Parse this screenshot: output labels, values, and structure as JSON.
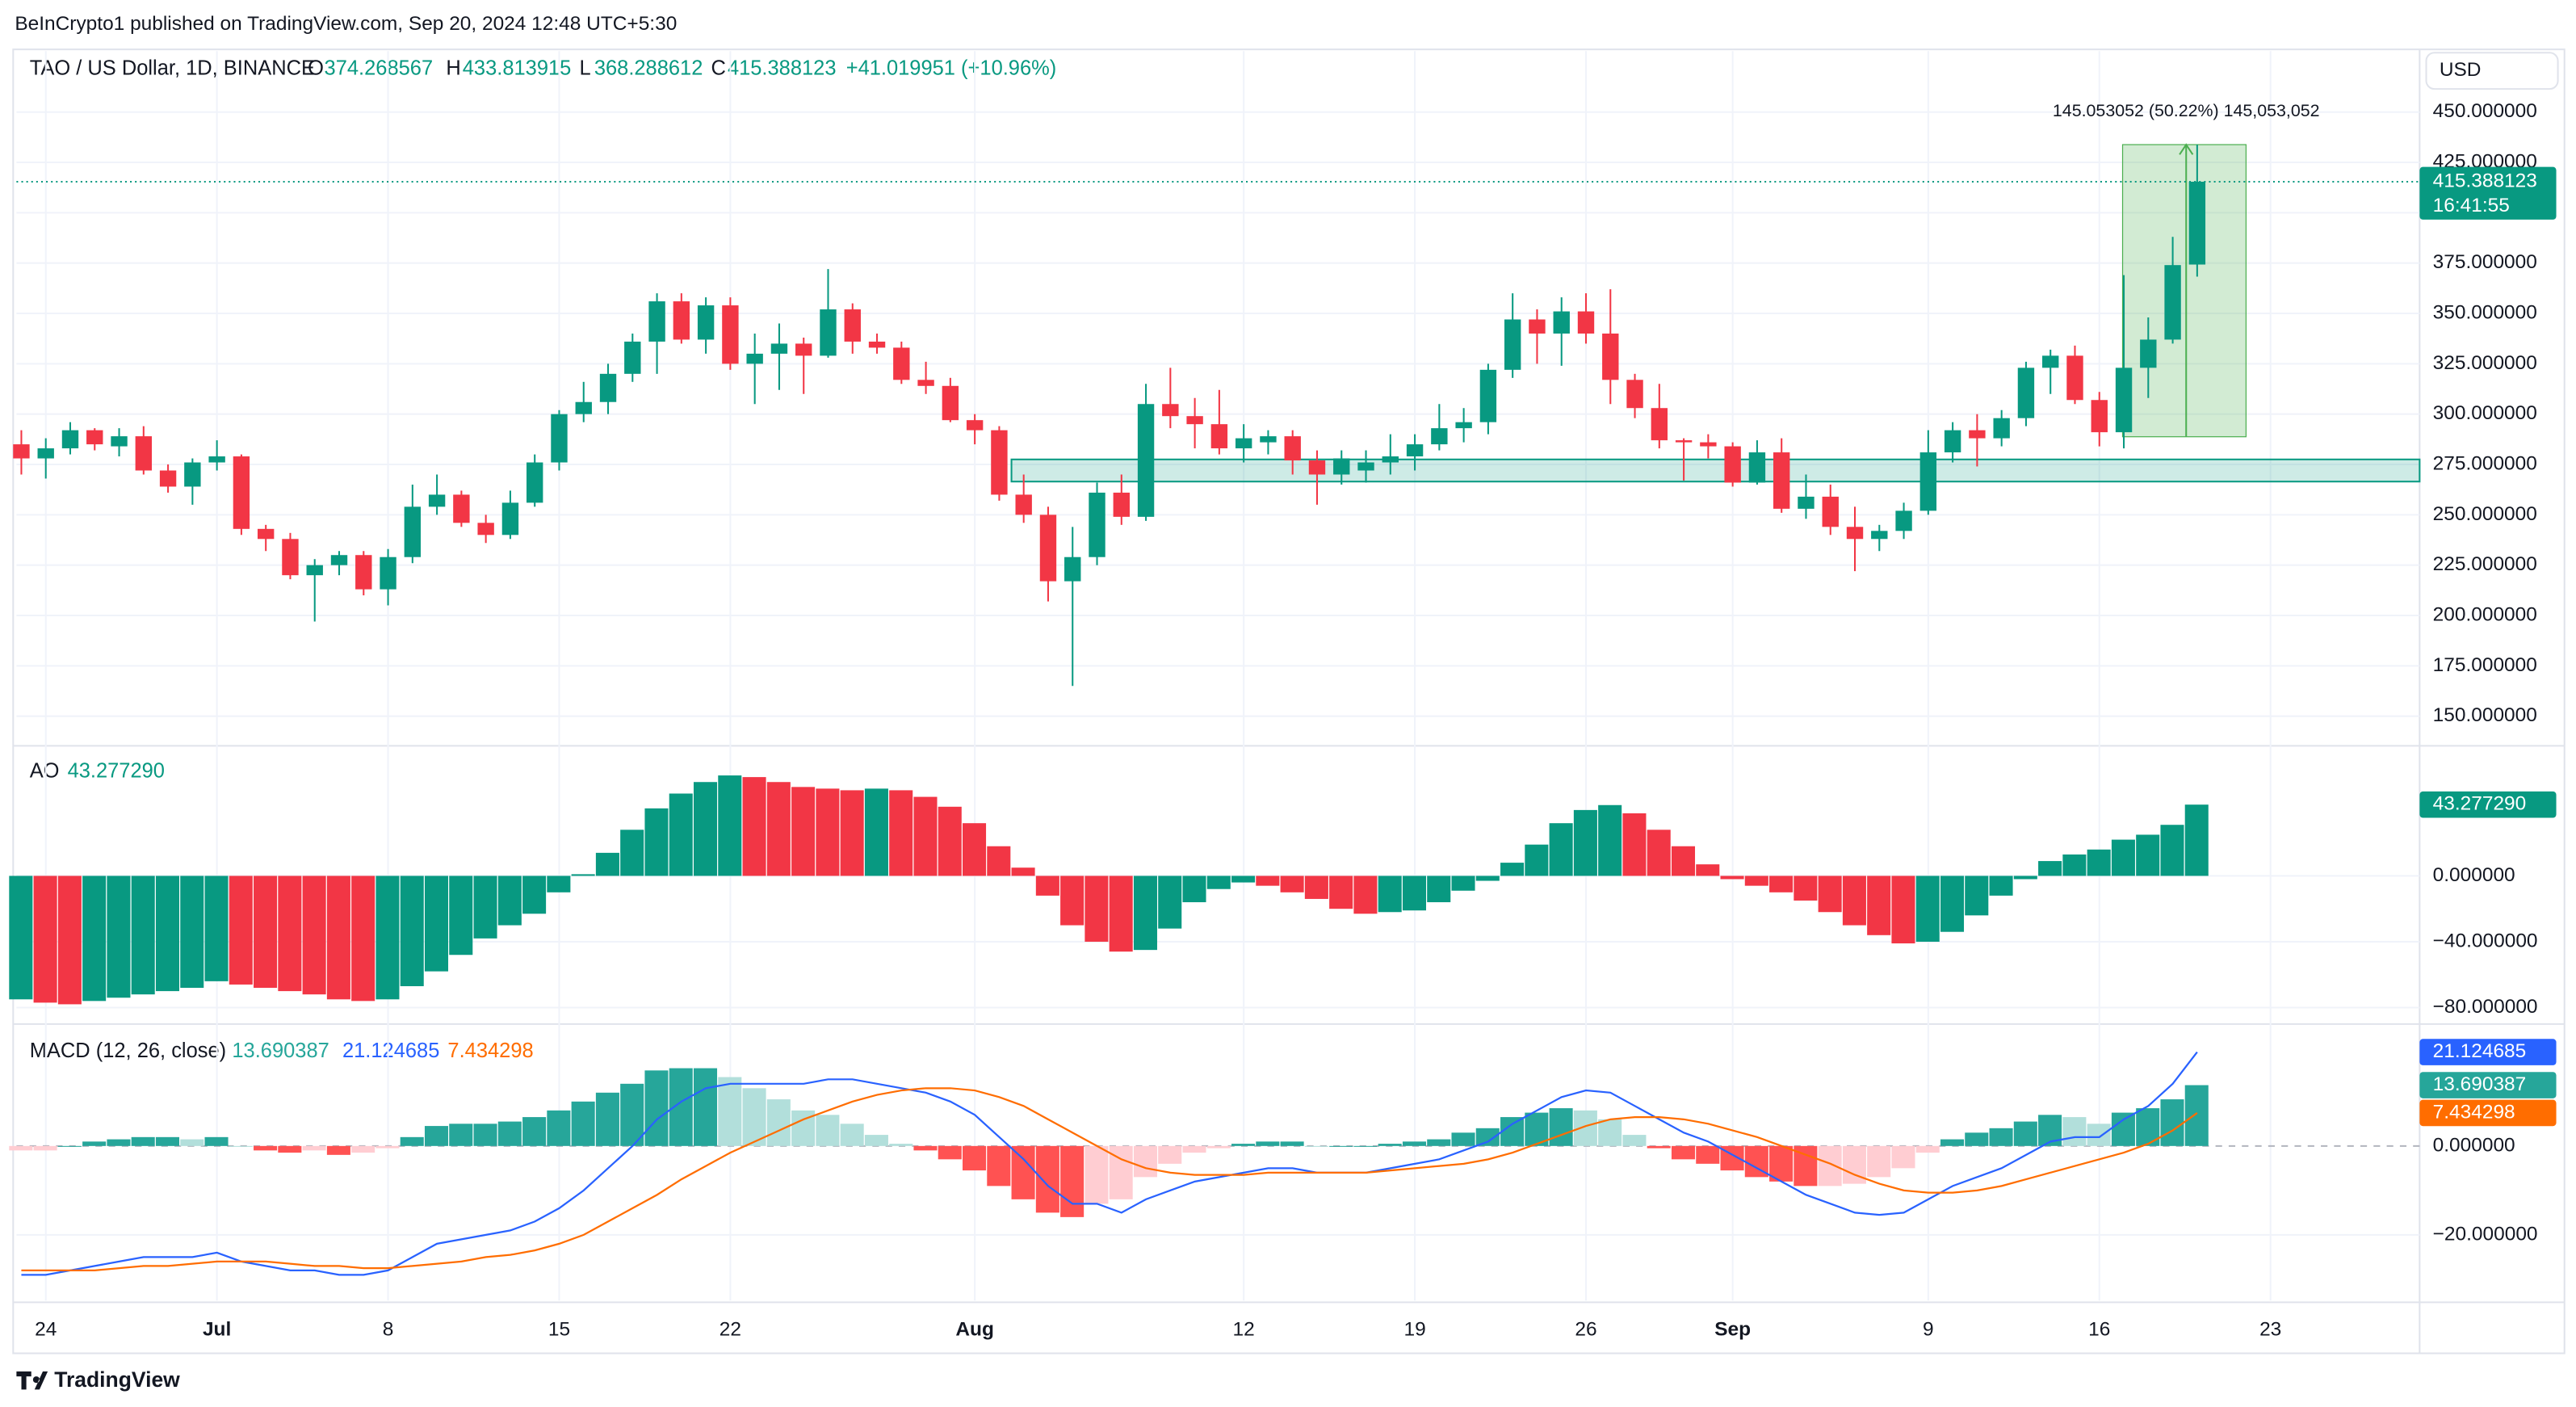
{
  "header": {
    "publisher": "BeInCrypto1 published on TradingView.com, Sep 20, 2024 12:48 UTC+5:30"
  },
  "footer": {
    "brand": "TradingView"
  },
  "chart_data": [
    {
      "type": "candlestick",
      "title": "TAO / US Dollar, 1D, BINANCE",
      "currency": "USD",
      "ohlc_letters": [
        "O",
        "H",
        "L",
        "C"
      ],
      "change_label": "+41.019951 (+10.96%)",
      "countdown": "16:41:55",
      "up_color": "#089981",
      "down_color": "#f23645",
      "grid": true,
      "x": [
        0,
        1,
        2,
        3,
        4,
        5,
        6,
        7,
        8,
        9,
        10,
        11,
        12,
        13,
        14,
        15,
        16,
        17,
        18,
        19,
        20,
        21,
        22,
        23,
        24,
        25,
        26,
        27,
        28,
        29,
        30,
        31,
        32,
        33,
        34,
        35,
        36,
        37,
        38,
        39,
        40,
        41,
        42,
        43,
        44,
        45,
        46,
        47,
        48,
        49,
        50,
        51,
        52,
        53,
        54,
        55,
        56,
        57,
        58,
        59,
        60,
        61,
        62,
        63,
        64,
        65,
        66,
        67,
        68,
        69,
        70,
        71,
        72,
        73,
        74,
        75,
        76,
        77,
        78,
        79,
        80,
        81,
        82,
        83,
        84,
        85,
        86,
        87,
        88,
        89
      ],
      "open": [
        285,
        278,
        283,
        292,
        284,
        289,
        272,
        264,
        276,
        279,
        243,
        238,
        220,
        225,
        230,
        213,
        229,
        254,
        260,
        246,
        240,
        256,
        276,
        300,
        306,
        320,
        336,
        356,
        337,
        354,
        325,
        330,
        335,
        329,
        352,
        336,
        333,
        317,
        314,
        297,
        292,
        260,
        250,
        217,
        229,
        261,
        249,
        305,
        299,
        295,
        283,
        286,
        289,
        277,
        270,
        272,
        276,
        279,
        285,
        293,
        296,
        322,
        347,
        340,
        351,
        340,
        317,
        303,
        287,
        286,
        284,
        266,
        281,
        253,
        259,
        244,
        238,
        242,
        252,
        281,
        292,
        288,
        298,
        323,
        329,
        307,
        291,
        323,
        337,
        374.268567
      ],
      "high": [
        292,
        288,
        296,
        293,
        293,
        294,
        275,
        278,
        287,
        280,
        245,
        241,
        228,
        232,
        232,
        233,
        265,
        270,
        262,
        250,
        262,
        280,
        302,
        316,
        325,
        340,
        360,
        360,
        358,
        358,
        340,
        345,
        338,
        372,
        355,
        340,
        336,
        326,
        318,
        300,
        294,
        270,
        254,
        244,
        266,
        270,
        315,
        323,
        308,
        312,
        295,
        292,
        292,
        282,
        282,
        282,
        290,
        290,
        305,
        303,
        325,
        360,
        352,
        358,
        360,
        362,
        320,
        315,
        288,
        290,
        286,
        287,
        288,
        270,
        265,
        254,
        245,
        256,
        292,
        296,
        300,
        302,
        326,
        332,
        334,
        311,
        369,
        348,
        388,
        433.813915
      ],
      "low": [
        270,
        268,
        280,
        282,
        279,
        270,
        261,
        255,
        272,
        240,
        232,
        218,
        197,
        220,
        210,
        205,
        226,
        250,
        244,
        236,
        238,
        254,
        272,
        296,
        300,
        316,
        320,
        335,
        330,
        322,
        305,
        312,
        310,
        328,
        330,
        330,
        315,
        310,
        296,
        285,
        257,
        246,
        207,
        165,
        225,
        245,
        247,
        293,
        283,
        280,
        276,
        280,
        270,
        255,
        265,
        266,
        270,
        272,
        282,
        286,
        290,
        318,
        325,
        324,
        335,
        305,
        298,
        283,
        267,
        278,
        264,
        265,
        251,
        248,
        240,
        222,
        232,
        238,
        250,
        276,
        274,
        284,
        294,
        310,
        305,
        284,
        283,
        308,
        335,
        368.288612
      ],
      "close": [
        278,
        283,
        292,
        285,
        289,
        272,
        264,
        276,
        279,
        243,
        238,
        220,
        225,
        230,
        213,
        229,
        254,
        260,
        246,
        240,
        256,
        276,
        300,
        306,
        320,
        336,
        356,
        337,
        354,
        325,
        330,
        335,
        329,
        352,
        336,
        333,
        317,
        314,
        297,
        292,
        260,
        250,
        217,
        229,
        261,
        249,
        305,
        299,
        295,
        283,
        288,
        289,
        277,
        270,
        278,
        276,
        279,
        285,
        293,
        296,
        322,
        347,
        340,
        351,
        340,
        317,
        303,
        287,
        286,
        284,
        266,
        281,
        253,
        259,
        244,
        238,
        242,
        252,
        281,
        292,
        288,
        298,
        323,
        329,
        307,
        291,
        323,
        337,
        374,
        415.388123
      ],
      "zone": [
        266.5,
        277.5
      ],
      "measure": {
        "low": 288.760863,
        "high": 433.813915,
        "label": "145.053052 (50.22%) 145,053,052"
      },
      "xlim": [
        -0.2,
        98.1
      ],
      "xticks": [
        {
          "value": 1,
          "label": "24"
        },
        {
          "value": 8,
          "label": "Jul"
        },
        {
          "value": 15,
          "label": "8"
        },
        {
          "value": 22,
          "label": "15"
        },
        {
          "value": 29,
          "label": "22"
        },
        {
          "value": 39,
          "label": "Aug"
        },
        {
          "value": 50,
          "label": "12"
        },
        {
          "value": 57,
          "label": "19"
        },
        {
          "value": 64,
          "label": "26"
        },
        {
          "value": 70,
          "label": "Sep"
        },
        {
          "value": 78,
          "label": "9"
        },
        {
          "value": 85,
          "label": "16"
        },
        {
          "value": 92,
          "label": "23"
        }
      ],
      "ylim": [
        136.1,
        481.1
      ],
      "yticks": [
        {
          "value": 150,
          "label": "150.000000"
        },
        {
          "value": 175,
          "label": "175.000000"
        },
        {
          "value": 200,
          "label": "200.000000"
        },
        {
          "value": 225,
          "label": "225.000000"
        },
        {
          "value": 250,
          "label": "250.000000"
        },
        {
          "value": 275,
          "label": "275.000000"
        },
        {
          "value": 300,
          "label": "300.000000"
        },
        {
          "value": 325,
          "label": "325.000000"
        },
        {
          "value": 350,
          "label": "350.000000"
        },
        {
          "value": 375,
          "label": "375.000000"
        },
        {
          "value": 400,
          "label": "400.000000"
        },
        {
          "value": 425,
          "label": "425.000000"
        },
        {
          "value": 450,
          "label": "450.000000"
        }
      ]
    },
    {
      "type": "ao",
      "title": "AO",
      "last_label": "43.277290",
      "up_color": "#089981",
      "down_color": "#f23645",
      "grid": true,
      "values": [
        -75,
        -77,
        -78,
        -76,
        -74,
        -72,
        -70,
        -68,
        -64,
        -66,
        -68,
        -70,
        -72,
        -75,
        -76,
        -75,
        -67,
        -58,
        -48,
        -38,
        -30,
        -23,
        -10,
        1,
        14,
        28,
        41,
        50,
        57,
        61,
        60,
        57,
        54,
        53,
        52,
        53,
        52,
        48,
        42,
        32,
        18,
        5,
        -12,
        -30,
        -40,
        -46,
        -45,
        -32,
        -16,
        -8,
        -4,
        -6,
        -10,
        -14,
        -20,
        -23,
        -22,
        -21,
        -16,
        -9,
        -3,
        8,
        19,
        32,
        40,
        43,
        38,
        28,
        18,
        7,
        -2,
        -6,
        -10,
        -15,
        -22,
        -30,
        -36,
        -41,
        -40,
        -34,
        -24,
        -12,
        -2,
        9,
        13,
        16,
        22,
        25,
        31,
        43.27729
      ],
      "ylim": [
        -88,
        78
      ],
      "yticks": [
        {
          "value": -80,
          "label": "−80.000000"
        },
        {
          "value": -40,
          "label": "−40.000000"
        },
        {
          "value": 0,
          "label": "0.000000"
        }
      ]
    },
    {
      "type": "macd",
      "title": "MACD (12, 26, close)",
      "grid": true,
      "histogram": {
        "colors": [
          "#26a69a",
          "#b2dfdb",
          "#ff5252",
          "#ffcdd2"
        ],
        "values": [
          -1,
          -1,
          0,
          1,
          1.5,
          2,
          2,
          1.5,
          2,
          0,
          -1,
          -1.5,
          -1,
          -2,
          -1.5,
          -0.5,
          2,
          4.5,
          5,
          5,
          5.5,
          6.5,
          8,
          10,
          12,
          14,
          17,
          17.5,
          17.5,
          15.5,
          13,
          10.5,
          8,
          7,
          5,
          2.5,
          0.5,
          -1,
          -3,
          -5.5,
          -9,
          -12,
          -15,
          -16,
          -13,
          -12,
          -7,
          -4,
          -1.5,
          -0.5,
          0.5,
          1,
          1,
          0,
          0,
          0,
          0.5,
          1,
          1.5,
          3,
          4,
          6.5,
          7.5,
          8.5,
          8,
          6,
          2.5,
          -0.5,
          -3,
          -4,
          -5.5,
          -7,
          -8,
          -9,
          -9,
          -8.5,
          -7,
          -5,
          -1.5,
          1.5,
          3,
          4,
          5.5,
          7,
          6.5,
          5,
          7.5,
          8.5,
          10.5,
          13.690387
        ]
      },
      "macd": {
        "color": "#2962ff",
        "values": [
          -29,
          -29,
          -28,
          -27,
          -26,
          -25,
          -25,
          -25,
          -24,
          -26,
          -27,
          -28,
          -28,
          -29,
          -29,
          -28,
          -25,
          -22,
          -21,
          -20,
          -19,
          -17,
          -14,
          -10,
          -5,
          0,
          6,
          10,
          13,
          14,
          14,
          14,
          14,
          15,
          15,
          14,
          13,
          12,
          10,
          7,
          2,
          -3,
          -9,
          -13,
          -13,
          -15,
          -12,
          -10,
          -8,
          -7,
          -6,
          -5,
          -5,
          -6,
          -6,
          -6,
          -5,
          -4,
          -3,
          -1,
          1,
          5,
          8,
          11,
          12.5,
          12,
          9,
          6,
          3,
          1,
          -2,
          -5,
          -8,
          -11,
          -13,
          -15,
          -15.5,
          -15,
          -12,
          -9,
          -7,
          -5,
          -2,
          1,
          2,
          2,
          6,
          9,
          14,
          21.124685
        ]
      },
      "signal": {
        "color": "#ff6d00",
        "values": [
          -28,
          -28,
          -28,
          -28,
          -27.5,
          -27,
          -27,
          -26.5,
          -26,
          -26,
          -26,
          -26.5,
          -27,
          -27,
          -27.5,
          -27.5,
          -27,
          -26.5,
          -26,
          -25,
          -24.5,
          -23.5,
          -22,
          -20,
          -17,
          -14,
          -11,
          -7.5,
          -4.5,
          -1.5,
          1,
          3.5,
          6,
          8,
          10,
          11.5,
          12.5,
          13,
          13,
          12.5,
          11,
          9,
          6,
          3,
          0,
          -3,
          -5,
          -6,
          -6.5,
          -6.5,
          -6.5,
          -6,
          -6,
          -6,
          -6,
          -6,
          -5.5,
          -5,
          -4.5,
          -4,
          -3,
          -1.5,
          0.5,
          2.5,
          4.5,
          6,
          6.5,
          6.5,
          6,
          5,
          3.5,
          2,
          0,
          -2,
          -4,
          -6.5,
          -8.5,
          -10,
          -10.5,
          -10.5,
          -10,
          -9,
          -7.5,
          -6,
          -4.5,
          -3,
          -1.5,
          0.5,
          3.5,
          7.434298
        ]
      },
      "ylim": [
        -34.8,
        26.7
      ],
      "yticks": [
        {
          "value": -20,
          "label": "−20.000000"
        },
        {
          "value": 0,
          "label": "0.000000"
        }
      ]
    }
  ]
}
